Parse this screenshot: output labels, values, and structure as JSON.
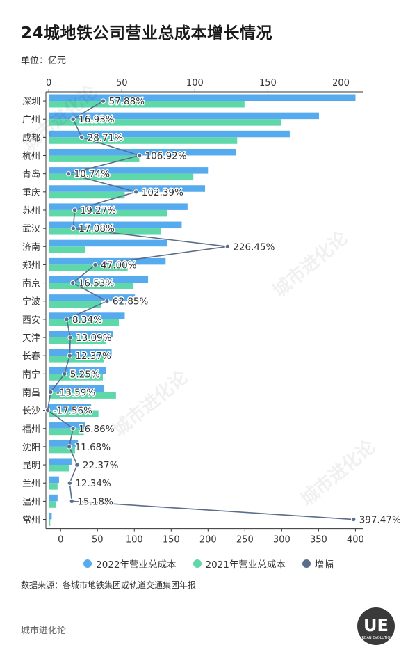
{
  "title": "24城地铁公司营业总成本增长情况",
  "unit": "单位：亿元",
  "source": "数据来源：各城市地铁集团或轨道交通集团年报",
  "brand": "城市进化论",
  "logo_text": "UE",
  "logo_subtext": "URBAN EVOLUTION",
  "watermark_text": "城市进化论",
  "colors": {
    "s2022": "#56aaee",
    "s2021": "#5ed8a8",
    "growth": "#5a6e8c",
    "axis": "#333333"
  },
  "chart_data": {
    "type": "bar",
    "orientation": "horizontal",
    "categories": [
      "深圳",
      "广州",
      "成都",
      "杭州",
      "青岛",
      "重庆",
      "苏州",
      "武汉",
      "济南",
      "郑州",
      "南京",
      "宁波",
      "西安",
      "天津",
      "长春",
      "南宁",
      "南昌",
      "长沙",
      "福州",
      "沈阳",
      "昆明",
      "兰州",
      "温州",
      "常州"
    ],
    "top_axis": {
      "ticks": [
        0,
        50,
        100,
        150,
        200
      ],
      "range": [
        -2,
        215
      ]
    },
    "bottom_axis": {
      "ticks": [
        0,
        50,
        100,
        150,
        200,
        250,
        300,
        350,
        400
      ],
      "range": [
        -20,
        410
      ]
    },
    "series": [
      {
        "name": "2022年营业总成本",
        "axis": "top",
        "values": [
          210,
          185,
          165,
          128,
          109,
          107,
          95,
          91,
          81,
          80,
          68,
          59,
          52,
          44,
          43,
          39,
          38,
          29,
          25,
          20,
          16,
          7,
          6,
          2
        ]
      },
      {
        "name": "2021年营业总成本",
        "axis": "top",
        "values": [
          134,
          159,
          129,
          62,
          99,
          52,
          81,
          77,
          25,
          54,
          58,
          36,
          48,
          39,
          38,
          37,
          46,
          34,
          24,
          18,
          14,
          6,
          5,
          1
        ]
      },
      {
        "name": "增幅",
        "axis": "bottom",
        "values": [
          57.88,
          16.93,
          28.71,
          106.92,
          10.74,
          102.39,
          19.27,
          17.08,
          226.45,
          47.0,
          16.53,
          62.85,
          8.34,
          13.09,
          12.37,
          5.25,
          -13.59,
          -17.56,
          16.86,
          11.68,
          22.37,
          12.34,
          15.18,
          397.47
        ]
      }
    ],
    "growth_labels": [
      "57.88%",
      "16.93%",
      "28.71%",
      "106.92%",
      "10.74%",
      "102.39%",
      "19.27%",
      "17.08%",
      "226.45%",
      "47.00%",
      "16.53%",
      "62.85%",
      "8.34%",
      "13.09%",
      "12.37%",
      "5.25%",
      "-13.59%",
      "-17.56%",
      "16.86%",
      "11.68%",
      "22.37%",
      "12.34%",
      "15.18%",
      "397.47%"
    ],
    "legend": [
      "2022年营业总成本",
      "2021年营业总成本",
      "增幅"
    ],
    "legend_position": "bottom"
  }
}
